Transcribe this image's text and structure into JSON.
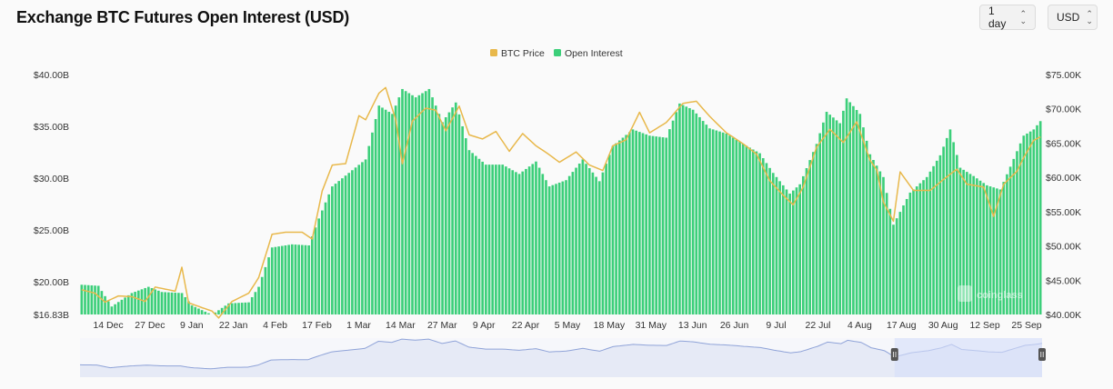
{
  "header": {
    "title": "Exchange BTC Futures Open Interest (USD)"
  },
  "controls": {
    "interval": {
      "value": "1 day"
    },
    "currency": {
      "value": "USD"
    }
  },
  "watermark": "coinglass",
  "colors": {
    "price": "#e8b84b",
    "oi": "#3ccf7a",
    "navigator_line": "#8fa3d8",
    "navigator_fill": "#e6eaf6",
    "navigator_selection": "#d5defa"
  },
  "chart_data": {
    "type": "bar",
    "legend": [
      "BTC Price",
      "Open Interest"
    ],
    "legend_position": "top-center",
    "left_axis": {
      "ticks": [
        "$40.00B",
        "$35.00B",
        "$30.00B",
        "$25.00B",
        "$20.00B",
        "$16.83B"
      ],
      "min": 16.83,
      "max": 40.0,
      "unit": "B USD"
    },
    "right_axis": {
      "ticks": [
        "$75.00K",
        "$70.00K",
        "$65.00K",
        "$60.00K",
        "$55.00K",
        "$50.00K",
        "$45.00K",
        "$40.00K"
      ],
      "min": 40.0,
      "max": 75.0,
      "unit": "K USD"
    },
    "x_ticks": [
      "14 Dec",
      "27 Dec",
      "9 Jan",
      "22 Jan",
      "4 Feb",
      "17 Feb",
      "1 Mar",
      "14 Mar",
      "27 Mar",
      "9 Apr",
      "22 Apr",
      "5 May",
      "18 May",
      "31 May",
      "13 Jun",
      "26 Jun",
      "9 Jul",
      "22 Jul",
      "4 Aug",
      "17 Aug",
      "30 Aug",
      "12 Sep",
      "25 Sep"
    ],
    "series": [
      {
        "name": "Open Interest",
        "kind": "bar",
        "axis": "left",
        "unit": "B USD",
        "keyframes": [
          [
            0,
            19.7
          ],
          [
            5,
            19.6
          ],
          [
            9,
            17.6
          ],
          [
            15,
            18.9
          ],
          [
            20,
            19.5
          ],
          [
            24,
            19.0
          ],
          [
            30,
            18.9
          ],
          [
            33,
            17.7
          ],
          [
            39,
            16.8
          ],
          [
            44,
            17.9
          ],
          [
            50,
            18.0
          ],
          [
            53,
            19.5
          ],
          [
            57,
            23.3
          ],
          [
            63,
            23.6
          ],
          [
            68,
            23.5
          ],
          [
            71,
            26.1
          ],
          [
            75,
            29.2
          ],
          [
            80,
            30.5
          ],
          [
            85,
            31.8
          ],
          [
            89,
            37.0
          ],
          [
            93,
            36.2
          ],
          [
            96,
            38.6
          ],
          [
            100,
            37.8
          ],
          [
            104,
            38.6
          ],
          [
            108,
            35.4
          ],
          [
            112,
            37.3
          ],
          [
            116,
            32.7
          ],
          [
            121,
            31.3
          ],
          [
            126,
            31.3
          ],
          [
            131,
            30.4
          ],
          [
            136,
            31.6
          ],
          [
            140,
            29.2
          ],
          [
            145,
            29.8
          ],
          [
            150,
            31.8
          ],
          [
            155,
            29.7
          ],
          [
            159,
            33.1
          ],
          [
            165,
            34.7
          ],
          [
            170,
            34.1
          ],
          [
            175,
            33.9
          ],
          [
            179,
            37.2
          ],
          [
            183,
            36.6
          ],
          [
            188,
            34.8
          ],
          [
            193,
            34.3
          ],
          [
            198,
            33.3
          ],
          [
            203,
            32.4
          ],
          [
            207,
            30.5
          ],
          [
            212,
            28.5
          ],
          [
            215,
            29.4
          ],
          [
            220,
            33.3
          ],
          [
            223,
            36.4
          ],
          [
            227,
            35.3
          ],
          [
            229,
            37.7
          ],
          [
            233,
            36.2
          ],
          [
            236,
            32.3
          ],
          [
            240,
            30.1
          ],
          [
            243,
            25.5
          ],
          [
            248,
            28.6
          ],
          [
            253,
            30.1
          ],
          [
            257,
            32.2
          ],
          [
            260,
            34.7
          ],
          [
            263,
            31.0
          ],
          [
            267,
            30.2
          ],
          [
            271,
            29.3
          ],
          [
            275,
            28.9
          ],
          [
            278,
            31.1
          ],
          [
            282,
            34.1
          ],
          [
            285,
            34.7
          ],
          [
            287,
            35.5
          ]
        ]
      },
      {
        "name": "BTC Price",
        "kind": "line",
        "axis": "right",
        "unit": "K USD",
        "keyframes": [
          [
            0,
            43.6
          ],
          [
            4,
            43.1
          ],
          [
            7,
            41.8
          ],
          [
            11,
            42.7
          ],
          [
            15,
            42.6
          ],
          [
            19,
            41.9
          ],
          [
            22,
            44.0
          ],
          [
            28,
            43.4
          ],
          [
            30,
            46.9
          ],
          [
            32,
            41.7
          ],
          [
            36,
            41.0
          ],
          [
            39,
            40.5
          ],
          [
            41,
            39.5
          ],
          [
            45,
            41.9
          ],
          [
            50,
            43.1
          ],
          [
            53,
            45.4
          ],
          [
            57,
            51.7
          ],
          [
            61,
            52.0
          ],
          [
            66,
            52.0
          ],
          [
            69,
            51.0
          ],
          [
            72,
            58.0
          ],
          [
            75,
            61.8
          ],
          [
            79,
            62.0
          ],
          [
            83,
            69.0
          ],
          [
            85,
            68.4
          ],
          [
            89,
            72.3
          ],
          [
            91,
            73.1
          ],
          [
            94,
            68.4
          ],
          [
            96,
            62.0
          ],
          [
            99,
            68.2
          ],
          [
            103,
            70.1
          ],
          [
            106,
            69.8
          ],
          [
            109,
            66.8
          ],
          [
            113,
            70.4
          ],
          [
            116,
            66.2
          ],
          [
            120,
            65.6
          ],
          [
            124,
            66.7
          ],
          [
            128,
            63.8
          ],
          [
            132,
            66.4
          ],
          [
            136,
            64.6
          ],
          [
            140,
            63.3
          ],
          [
            143,
            62.2
          ],
          [
            148,
            63.7
          ],
          [
            152,
            61.8
          ],
          [
            156,
            61.0
          ],
          [
            159,
            64.6
          ],
          [
            163,
            65.5
          ],
          [
            167,
            69.5
          ],
          [
            170,
            66.5
          ],
          [
            175,
            68.0
          ],
          [
            180,
            70.8
          ],
          [
            184,
            71.1
          ],
          [
            188,
            68.9
          ],
          [
            193,
            66.5
          ],
          [
            198,
            64.9
          ],
          [
            202,
            63.4
          ],
          [
            206,
            59.5
          ],
          [
            210,
            57.4
          ],
          [
            213,
            56.0
          ],
          [
            216,
            58.6
          ],
          [
            220,
            64.4
          ],
          [
            224,
            67.0
          ],
          [
            228,
            65.1
          ],
          [
            232,
            68.1
          ],
          [
            236,
            62.5
          ],
          [
            238,
            61.1
          ],
          [
            240,
            56.4
          ],
          [
            243,
            53.6
          ],
          [
            245,
            60.8
          ],
          [
            249,
            58.1
          ],
          [
            254,
            58.1
          ],
          [
            258,
            59.7
          ],
          [
            262,
            61.2
          ],
          [
            265,
            59.0
          ],
          [
            270,
            58.6
          ],
          [
            273,
            54.3
          ],
          [
            276,
            59.0
          ],
          [
            280,
            60.9
          ],
          [
            282,
            62.9
          ],
          [
            285,
            65.4
          ],
          [
            287,
            65.9
          ]
        ]
      }
    ]
  }
}
